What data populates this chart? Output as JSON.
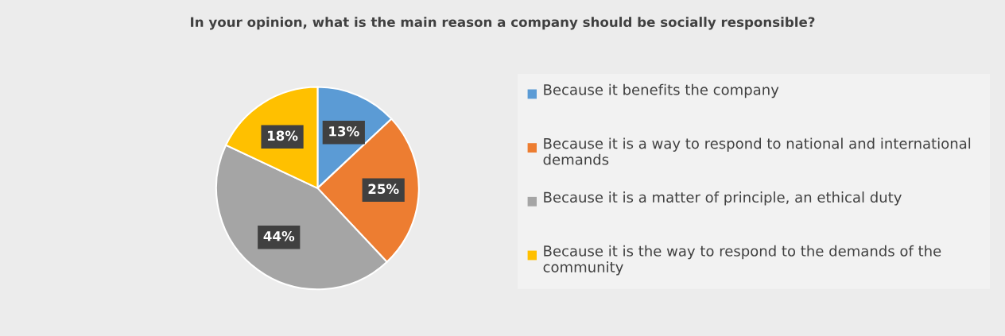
{
  "chart_data": {
    "type": "pie",
    "title": "In your opinion, what is the main reason a company should be socially responsible?",
    "categories": [
      "Because it benefits the company",
      "Because it is a way to respond to national and international demands",
      "Because it is a matter of principle, an ethical duty",
      "Because it is the way to respond to the demands of the community"
    ],
    "values": [
      13,
      25,
      44,
      18
    ],
    "colors": [
      "#5b9bd5",
      "#ed7d31",
      "#a5a5a5",
      "#ffc000"
    ],
    "value_labels": [
      "13%",
      "25%",
      "44%",
      "18%"
    ],
    "legend": "right"
  }
}
